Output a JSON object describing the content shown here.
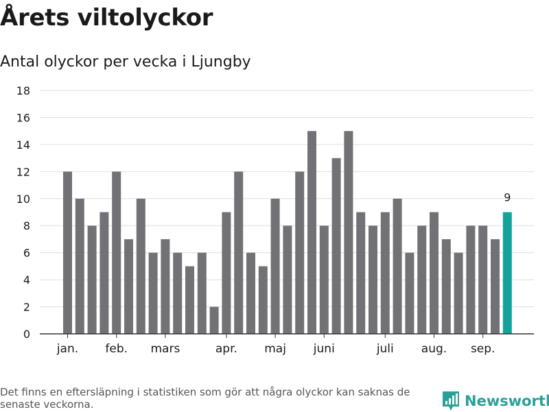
{
  "page": {
    "title": "Årets viltolyckor",
    "subtitle": "Antal olyckor per vecka i Ljungby",
    "footnote": "Det finns en eftersläpning i statistiken som gör att några olyckor kan saknas de senaste veckorna.",
    "brand": "Newsworthy"
  },
  "colors": {
    "bar": "#727175",
    "highlight": "#12a39a",
    "brand": "#2aa198"
  },
  "chart_data": {
    "type": "bar",
    "title": "",
    "xlabel": "",
    "ylabel": "",
    "ylim": [
      0,
      18
    ],
    "yticks": [
      0,
      2,
      4,
      6,
      8,
      10,
      12,
      14,
      16,
      18
    ],
    "grid": true,
    "values": [
      12,
      10,
      8,
      9,
      12,
      7,
      10,
      6,
      7,
      6,
      5,
      6,
      2,
      9,
      12,
      6,
      5,
      10,
      8,
      12,
      15,
      8,
      13,
      15,
      9,
      8,
      9,
      10,
      6,
      8,
      9,
      7,
      6,
      8,
      8,
      7,
      9
    ],
    "highlight_index": 36,
    "highlight_label": "9",
    "month_labels": [
      {
        "label": "jan.",
        "bar_index": 0
      },
      {
        "label": "feb.",
        "bar_index": 4
      },
      {
        "label": "mars",
        "bar_index": 8
      },
      {
        "label": "apr.",
        "bar_index": 13
      },
      {
        "label": "maj",
        "bar_index": 17
      },
      {
        "label": "juni",
        "bar_index": 21
      },
      {
        "label": "juli",
        "bar_index": 26
      },
      {
        "label": "aug.",
        "bar_index": 30
      },
      {
        "label": "sep.",
        "bar_index": 34
      }
    ]
  }
}
